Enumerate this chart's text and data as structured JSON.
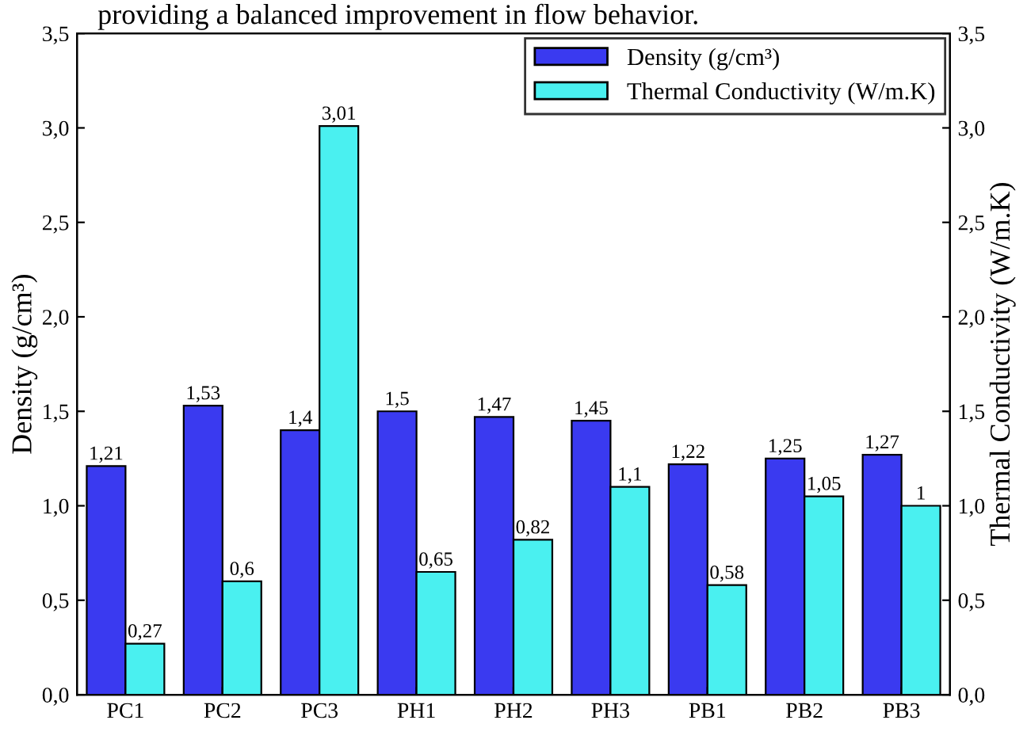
{
  "chart_data": {
    "type": "bar",
    "categories": [
      "PC1",
      "PC2",
      "PC3",
      "PH1",
      "PH2",
      "PH3",
      "PB1",
      "PB2",
      "PB3"
    ],
    "ylabel": "Density (g/cm³)",
    "y2label": "Thermal Conductivity (W/m.K)",
    "series": [
      {
        "name": "Density (g/cm³)",
        "color": "#3a3af0",
        "values": [
          1.21,
          1.53,
          1.4,
          1.5,
          1.47,
          1.45,
          1.22,
          1.25,
          1.27
        ],
        "value_labels": [
          "1,21",
          "1,53",
          "1,4",
          "1,5",
          "1,47",
          "1,45",
          "1,22",
          "1,25",
          "1,27"
        ]
      },
      {
        "name": "Thermal Conductivity (W/m.K)",
        "color": "#4af0f0",
        "axis": "y2",
        "values": [
          0.27,
          0.6,
          3.01,
          0.65,
          0.82,
          1.1,
          0.58,
          1.05,
          1.0
        ],
        "value_labels": [
          "0,27",
          "0,6",
          "3,01",
          "0,65",
          "0,82",
          "1,1",
          "0,58",
          "1,05",
          "1"
        ]
      }
    ],
    "ylim": [
      0,
      3.5
    ],
    "yticks": [
      {
        "value": 0,
        "label": "0,0"
      },
      {
        "value": 0.5,
        "label": "0,5"
      },
      {
        "value": 1,
        "label": "1,0"
      },
      {
        "value": 1.5,
        "label": "1,5"
      },
      {
        "value": 2,
        "label": "2,0"
      },
      {
        "value": 2.5,
        "label": "2,5"
      },
      {
        "value": 3,
        "label": "3,0"
      },
      {
        "value": 3.5,
        "label": "3,5"
      }
    ],
    "y2lim": [
      0,
      3.5
    ],
    "y2ticks": [
      {
        "value": 0,
        "label": "0,0"
      },
      {
        "value": 0.5,
        "label": "0,5"
      },
      {
        "value": 1,
        "label": "1,0"
      },
      {
        "value": 1.5,
        "label": "1,5"
      },
      {
        "value": 2,
        "label": "2,0"
      },
      {
        "value": 2.5,
        "label": "2,5"
      },
      {
        "value": 3,
        "label": "3,0"
      },
      {
        "value": 3.5,
        "label": "3,5"
      }
    ],
    "legend": "top right",
    "grid": false,
    "annotations": [
      "providing a balanced improvement in flow behavior."
    ]
  }
}
